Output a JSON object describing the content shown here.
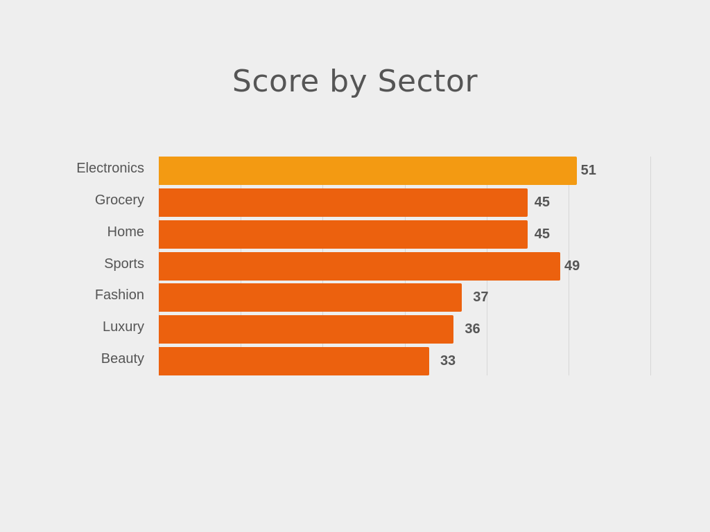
{
  "title": "Score by Sector",
  "colors": {
    "highlight": "#f39a12",
    "bar": "#ec610e",
    "text": "#555555",
    "grid": "#d6d6d6",
    "background": "#eeeeee"
  },
  "chart_data": {
    "type": "bar",
    "orientation": "horizontal",
    "title": "Score by Sector",
    "categories": [
      "Electronics",
      "Grocery",
      "Home",
      "Sports",
      "Fashion",
      "Luxury",
      "Beauty"
    ],
    "values": [
      51,
      45,
      45,
      49,
      37,
      36,
      33
    ],
    "highlighted": "Electronics",
    "xlabel": "",
    "ylabel": "",
    "xlim": [
      0,
      60
    ],
    "grid": true,
    "gridlines": [
      0,
      10,
      20,
      30,
      40,
      50,
      60
    ],
    "data_labels": true,
    "legend": null
  }
}
